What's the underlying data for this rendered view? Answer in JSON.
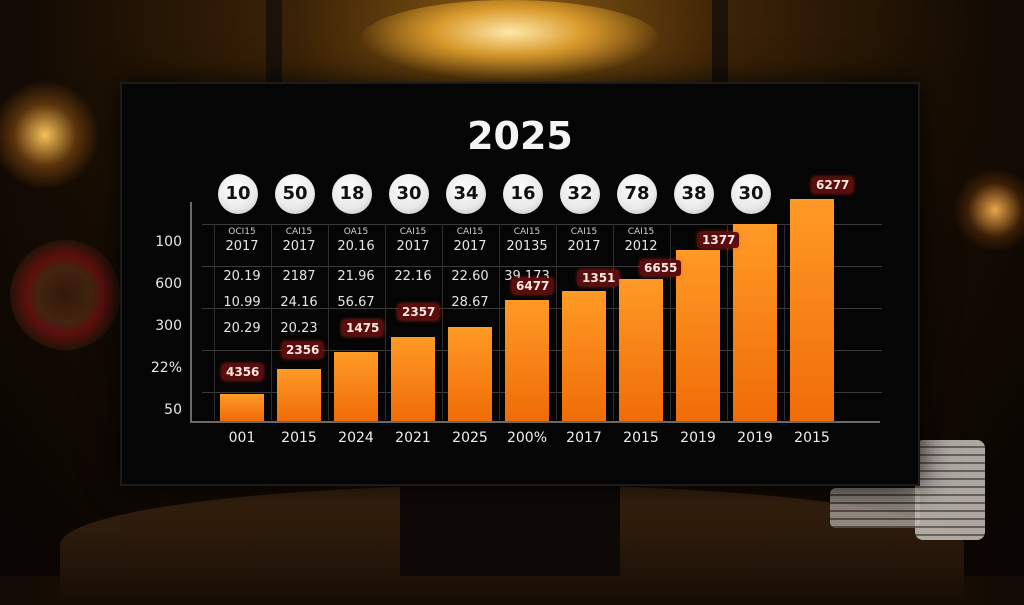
{
  "board": {
    "title": "2025",
    "balls": [
      "10",
      "50",
      "18",
      "30",
      "34",
      "16",
      "32",
      "78",
      "38",
      "30"
    ],
    "y_ticks": [
      "100",
      "600",
      "300",
      "22%",
      "50"
    ],
    "x_labels": [
      "001",
      "2015",
      "2024",
      "2021",
      "2025",
      "200%",
      "2017",
      "2015",
      "2019",
      "2019",
      "2015"
    ],
    "tiny_row": [
      "OCI15",
      "CAI15",
      "OA15",
      "CAI15",
      "CAI15",
      "CAI15",
      "CAI15",
      "CAI15"
    ],
    "table_rows": [
      [
        "2017",
        "2017",
        "20.16",
        "2017",
        "2017",
        "20135",
        "2017",
        "2012"
      ],
      [
        "20.19",
        "2187",
        "21.96",
        "22.16",
        "22.60",
        "39.173"
      ],
      [
        "10.99",
        "24.16",
        "56.67",
        "",
        "28.67"
      ],
      [
        "20.29",
        "20.23"
      ]
    ],
    "tags": [
      "4356",
      "2356",
      "1475",
      "2357",
      "6477",
      "1351",
      "6655",
      "1377",
      "6277"
    ]
  },
  "chart_data": {
    "type": "bar",
    "title": "2025",
    "categories": [
      "001",
      "2015",
      "2024",
      "2021",
      "2025",
      "200%",
      "2017",
      "2015",
      "2019",
      "2019",
      "2015"
    ],
    "values": [
      14,
      27,
      36,
      44,
      49,
      63,
      68,
      74,
      89,
      103,
      116
    ],
    "ylim": [
      0,
      120
    ],
    "grid": true
  }
}
